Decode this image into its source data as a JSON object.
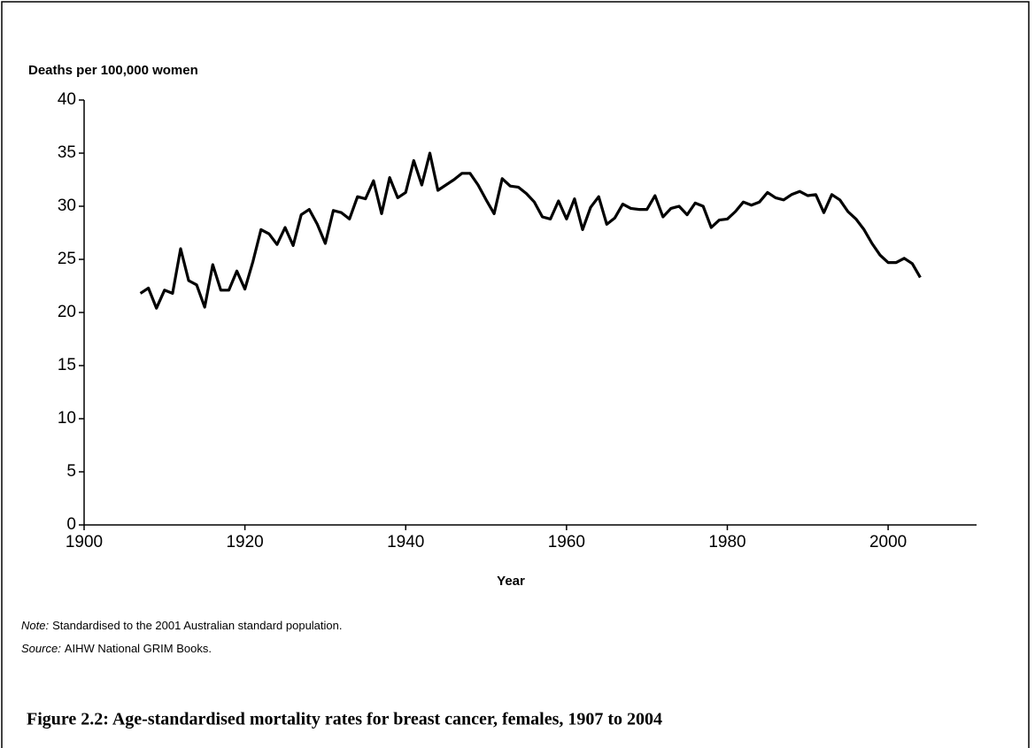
{
  "chart_data": {
    "type": "line",
    "ylabel": "Deaths  per 100,000 women",
    "xlabel": "Year",
    "x": [
      1907,
      1908,
      1909,
      1910,
      1911,
      1912,
      1913,
      1914,
      1915,
      1916,
      1917,
      1918,
      1919,
      1920,
      1921,
      1922,
      1923,
      1924,
      1925,
      1926,
      1927,
      1928,
      1929,
      1930,
      1931,
      1932,
      1933,
      1934,
      1935,
      1936,
      1937,
      1938,
      1939,
      1940,
      1941,
      1942,
      1943,
      1944,
      1945,
      1946,
      1947,
      1948,
      1949,
      1950,
      1951,
      1952,
      1953,
      1954,
      1955,
      1956,
      1957,
      1958,
      1959,
      1960,
      1961,
      1962,
      1963,
      1964,
      1965,
      1966,
      1967,
      1968,
      1969,
      1970,
      1971,
      1972,
      1973,
      1974,
      1975,
      1976,
      1977,
      1978,
      1979,
      1980,
      1981,
      1982,
      1983,
      1984,
      1985,
      1986,
      1987,
      1988,
      1989,
      1990,
      1991,
      1992,
      1993,
      1994,
      1995,
      1996,
      1997,
      1998,
      1999,
      2000,
      2001,
      2002,
      2003,
      2004
    ],
    "values": [
      21.8,
      22.3,
      20.4,
      22.1,
      21.8,
      26.0,
      23.0,
      22.6,
      20.5,
      24.5,
      22.1,
      22.1,
      23.9,
      22.2,
      24.8,
      27.8,
      27.4,
      26.4,
      28.0,
      26.3,
      29.2,
      29.7,
      28.3,
      26.5,
      29.6,
      29.4,
      28.8,
      30.9,
      30.7,
      32.4,
      29.3,
      32.7,
      30.8,
      31.3,
      34.3,
      32.0,
      35.0,
      31.5,
      32.0,
      32.5,
      33.1,
      33.1,
      32.0,
      30.6,
      29.3,
      32.6,
      31.9,
      31.8,
      31.2,
      30.4,
      29.0,
      28.8,
      30.5,
      28.8,
      30.7,
      27.8,
      29.9,
      30.9,
      28.3,
      28.9,
      30.2,
      29.8,
      29.7,
      29.7,
      31.0,
      29.0,
      29.8,
      30.0,
      29.2,
      30.3,
      30.0,
      28.0,
      28.7,
      28.8,
      29.5,
      30.4,
      30.1,
      30.4,
      31.3,
      30.8,
      30.6,
      31.1,
      31.4,
      31.0,
      31.1,
      29.4,
      31.1,
      30.6,
      29.5,
      28.8,
      27.8,
      26.5,
      25.4,
      24.7,
      24.7,
      25.1,
      24.6,
      23.3
    ],
    "color": "#000000",
    "xlim": [
      1900,
      2011
    ],
    "xticks": [
      1900,
      1920,
      1940,
      1960,
      1980,
      2000
    ],
    "ylim": [
      0,
      40
    ],
    "yticks": [
      0,
      5,
      10,
      15,
      20,
      25,
      30,
      35,
      40
    ],
    "notes": [
      {
        "label": "Note:",
        "text": "Standardised to the 2001 Australian standard population."
      },
      {
        "label": "Source:",
        "text": "AIHW National GRIM Books."
      }
    ],
    "caption": "Figure 2.2: Age-standardised mortality rates for breast cancer, females, 1907 to 2004"
  }
}
